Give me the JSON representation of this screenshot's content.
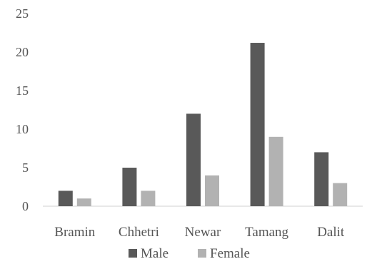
{
  "chart_data": {
    "type": "bar",
    "categories": [
      "Bramin",
      "Chhetri",
      "Newar",
      "Tamang",
      "Dalit"
    ],
    "series": [
      {
        "name": "Male",
        "values": [
          2,
          5,
          12,
          21.2,
          7
        ],
        "color": "#595959"
      },
      {
        "name": "Female",
        "values": [
          1,
          2,
          4,
          9,
          3
        ],
        "color": "#b2b2b2"
      }
    ],
    "yticks": [
      "0",
      "5",
      "10",
      "15",
      "20",
      "25"
    ],
    "ylim": [
      0,
      25
    ],
    "grid": false,
    "legend": "bottom-center",
    "title": "",
    "xlabel": "",
    "ylabel": ""
  }
}
